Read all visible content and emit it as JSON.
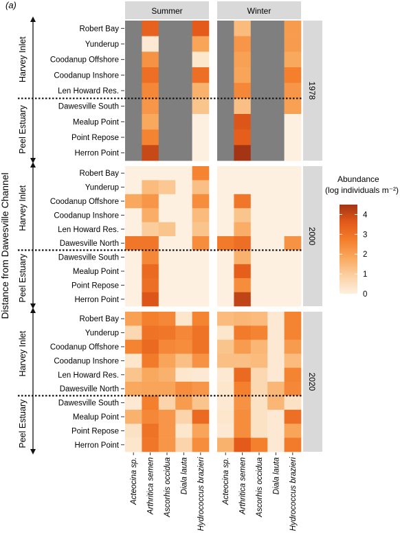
{
  "panel_label": "(a)",
  "y_axis_title": "Distance from Dawesville Channel",
  "facet_columns": [
    "Summer",
    "Winter"
  ],
  "colors": {
    "na": "#7f7f7f",
    "strip": "#d9d9d9",
    "divider": "#111111",
    "arrow": "#111111",
    "scale": [
      "#fdf0e0",
      "#fbd1a4",
      "#f9a95e",
      "#f47f2d",
      "#e35a1a",
      "#a33414"
    ]
  },
  "chart_data": {
    "type": "heatmap",
    "species": [
      "Acteocina sp.",
      "Arthritica semen",
      "Ascorhis occidua",
      "Diala lauta",
      "Hydrococcus brazieri"
    ],
    "legend": {
      "title_line1": "Abundance",
      "title_line2": "(log individuals m⁻²)",
      "min": 0,
      "max": 4.5,
      "ticks": [
        0,
        1,
        2,
        3,
        4
      ]
    },
    "facets": [
      {
        "year": "1978",
        "upper_region": "Harvey Inlet",
        "lower_region": "Peel Estuary",
        "divider_after": 5,
        "sites": [
          "Robert Bay",
          "Yunderup",
          "Coodanup Offshore",
          "Coodanup Inshore",
          "Len Howard Res.",
          "Dawesville South",
          "Mealup Point",
          "Point Repose",
          "Herron Point"
        ],
        "summer": [
          [
            null,
            3.4,
            null,
            null,
            3.6
          ],
          [
            null,
            0.2,
            null,
            null,
            1.9
          ],
          [
            null,
            2.3,
            null,
            null,
            0.3
          ],
          [
            null,
            3.1,
            null,
            null,
            3.1
          ],
          [
            null,
            2.5,
            null,
            null,
            1.6
          ],
          [
            null,
            2.2,
            null,
            null,
            1.2
          ],
          [
            null,
            1.8,
            null,
            null,
            0
          ],
          [
            null,
            2.6,
            null,
            null,
            0
          ],
          [
            null,
            4.0,
            null,
            null,
            0
          ]
        ],
        "winter": [
          [
            null,
            1.4,
            null,
            null,
            2.1
          ],
          [
            null,
            2.2,
            null,
            null,
            2.1
          ],
          [
            null,
            2.0,
            null,
            null,
            1.8
          ],
          [
            null,
            1.9,
            null,
            null,
            2.7
          ],
          [
            null,
            2.5,
            null,
            null,
            2.2
          ],
          [
            null,
            1.3,
            null,
            null,
            2.0
          ],
          [
            null,
            3.7,
            null,
            null,
            0
          ],
          [
            null,
            3.5,
            null,
            null,
            0
          ],
          [
            null,
            4.5,
            null,
            null,
            0
          ]
        ]
      },
      {
        "year": "2000",
        "upper_region": "Harvey Inlet",
        "lower_region": "Peel Estuary",
        "divider_after": 6,
        "sites": [
          "Robert Bay",
          "Yunderup",
          "Coodanup Offshore",
          "Coodanup Inshore",
          "Len Howard Res.",
          "Dawesville North",
          "Dawesville South",
          "Mealup Point",
          "Point Repose",
          "Herron Point"
        ],
        "summer": [
          [
            0,
            0,
            0,
            0,
            2.6
          ],
          [
            0,
            1.4,
            1.1,
            0,
            1.3
          ],
          [
            1.8,
            2.2,
            0,
            0,
            2.4
          ],
          [
            0,
            1.7,
            0,
            0,
            1.4
          ],
          [
            0,
            1.0,
            1.2,
            0,
            1.2
          ],
          [
            2.9,
            2.9,
            0,
            0,
            2.4
          ],
          [
            0,
            2.5,
            0,
            0,
            0
          ],
          [
            0,
            3.2,
            0,
            0,
            0
          ],
          [
            0,
            3.1,
            0,
            0,
            0
          ],
          [
            0,
            3.7,
            0,
            0,
            0
          ]
        ],
        "winter": [
          [
            0,
            0,
            0,
            0,
            0
          ],
          [
            0,
            0,
            0,
            0,
            0
          ],
          [
            0,
            2.9,
            0,
            0,
            0
          ],
          [
            0,
            1.2,
            0,
            0,
            0
          ],
          [
            0,
            1.7,
            0,
            0,
            0
          ],
          [
            2.8,
            3.1,
            0,
            0,
            2.3
          ],
          [
            0,
            1.6,
            0,
            0,
            0
          ],
          [
            0,
            3.5,
            0,
            0,
            0
          ],
          [
            0,
            2.4,
            0,
            0,
            0
          ],
          [
            0,
            4.1,
            0,
            0,
            0
          ]
        ]
      },
      {
        "year": "2020",
        "upper_region": "Harvey Inlet",
        "lower_region": "Peel Estuary",
        "divider_after": 6,
        "sites": [
          "Robert Bay",
          "Yunderup",
          "Coodanup Offshore",
          "Coodanup Inshore",
          "Len Howard Res.",
          "Dawesville North",
          "Dawesville South",
          "Mealup Point",
          "Point Repose",
          "Herron Point"
        ],
        "summer": [
          [
            2.0,
            2.7,
            2.5,
            0.3,
            2.6
          ],
          [
            0.7,
            3.0,
            2.9,
            2.5,
            3.0
          ],
          [
            2.6,
            3.2,
            2.5,
            2.4,
            3.0
          ],
          [
            0.3,
            2.8,
            1.9,
            1.3,
            2.3
          ],
          [
            1.2,
            1.8,
            1.6,
            0.3,
            0.2
          ],
          [
            1.8,
            1.9,
            1.9,
            2.4,
            2.2
          ],
          [
            0.2,
            2.7,
            0.8,
            2.1,
            1.2
          ],
          [
            1.6,
            2.5,
            2.2,
            0.8,
            3.2
          ],
          [
            0.4,
            3.0,
            2.2,
            0.3,
            1.9
          ],
          [
            0.3,
            2.9,
            2.2,
            0.8,
            2.4
          ]
        ],
        "winter": [
          [
            1.4,
            1.5,
            1.4,
            0.2,
            2.6
          ],
          [
            0.3,
            2.8,
            2.6,
            0.2,
            2.6
          ],
          [
            1.2,
            2.1,
            1.5,
            0.2,
            2.1
          ],
          [
            1.3,
            1.3,
            1.4,
            0.2,
            1.4
          ],
          [
            0.2,
            3.2,
            0.7,
            0.2,
            2.6
          ],
          [
            0.3,
            2.7,
            0.7,
            1.5,
            2.5
          ],
          [
            0.2,
            2.3,
            0.4,
            1.5,
            0.4
          ],
          [
            0.3,
            2.4,
            0.4,
            0.2,
            3.1
          ],
          [
            0.2,
            2.4,
            0.4,
            0.2,
            1.9
          ],
          [
            1.6,
            3.6,
            2.7,
            0.2,
            2.8
          ]
        ]
      }
    ]
  }
}
